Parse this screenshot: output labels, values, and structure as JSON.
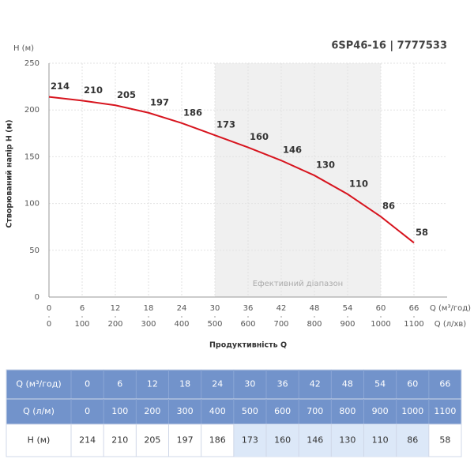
{
  "chart_data": {
    "type": "line",
    "title": "6SP46-16 | 7777533",
    "y_axis_title": "H (м)",
    "y_label": "Створюваний напір H (м)",
    "x_label": "Q (м³/год)",
    "x2_label": "Q (л/хв)",
    "x_title": "Продуктивність Q",
    "x": [
      0,
      6,
      12,
      18,
      24,
      30,
      36,
      42,
      48,
      54,
      60,
      66
    ],
    "series": [
      {
        "name": "H (м)",
        "color": "#d7141e",
        "values": [
          214,
          210,
          205,
          197,
          186,
          173,
          160,
          146,
          130,
          110,
          86,
          58
        ]
      }
    ],
    "xlim": [
      0,
      72
    ],
    "xticks": [
      0,
      6,
      12,
      18,
      24,
      30,
      36,
      42,
      48,
      54,
      60,
      66
    ],
    "x2lim": [
      0,
      1200
    ],
    "x2ticks": [
      0,
      100,
      200,
      300,
      400,
      500,
      600,
      700,
      800,
      900,
      1000,
      1100
    ],
    "ylim": [
      0,
      250
    ],
    "yticks": [
      0,
      50,
      100,
      150,
      200,
      250
    ],
    "grid": true,
    "highlight": {
      "xrange": [
        30,
        60
      ],
      "label": "Ефективний діапазон",
      "color": "#f0f0f0"
    }
  },
  "table": {
    "row_labels": [
      "Q (м³/год)",
      "Q (л/м)",
      "H (м)"
    ],
    "header_color": "#7293cb",
    "highlight_color": "#dce8f8"
  }
}
